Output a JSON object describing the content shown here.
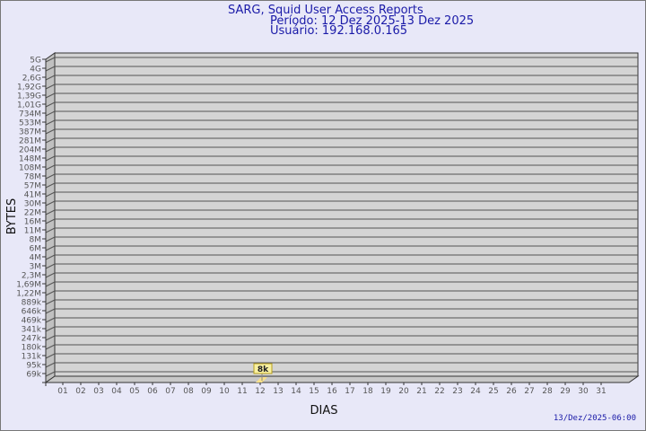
{
  "chart_data": {
    "type": "bar",
    "title": "SARG, Squid User Access Reports",
    "subtitle_period": "Período: 12 Dez 2025-13 Dez 2025",
    "subtitle_user": "Usuário: 192.168.0.165",
    "xlabel": "DIAS",
    "ylabel": "BYTES",
    "y_scale": "log",
    "y_tick_labels": [
      "5G",
      "4G",
      "2,6G",
      "1,92G",
      "1,39G",
      "1,01G",
      "734M",
      "533M",
      "387M",
      "281M",
      "204M",
      "148M",
      "108M",
      "78M",
      "57M",
      "41M",
      "30M",
      "22M",
      "16M",
      "11M",
      "8M",
      "6M",
      "4M",
      "3M",
      "2,3M",
      "1,69M",
      "1,22M",
      "889k",
      "646k",
      "469k",
      "341k",
      "247k",
      "180k",
      "131k",
      "95k",
      "69k"
    ],
    "categories": [
      "01",
      "02",
      "03",
      "04",
      "05",
      "06",
      "07",
      "08",
      "09",
      "10",
      "11",
      "12",
      "13",
      "14",
      "15",
      "16",
      "17",
      "18",
      "19",
      "20",
      "21",
      "22",
      "23",
      "24",
      "25",
      "26",
      "27",
      "28",
      "29",
      "30",
      "31"
    ],
    "bars": [
      {
        "day": "12",
        "value_label": "8k"
      }
    ],
    "grid": true,
    "colors": {
      "panel": "#d4d4d4",
      "wall": "#c0c0c0",
      "bar": "#f8e08a",
      "label_bg": "#f8f0a0",
      "title": "#1a1aa8"
    }
  },
  "footer": {
    "timestamp": "13/Dez/2025-06:00"
  }
}
